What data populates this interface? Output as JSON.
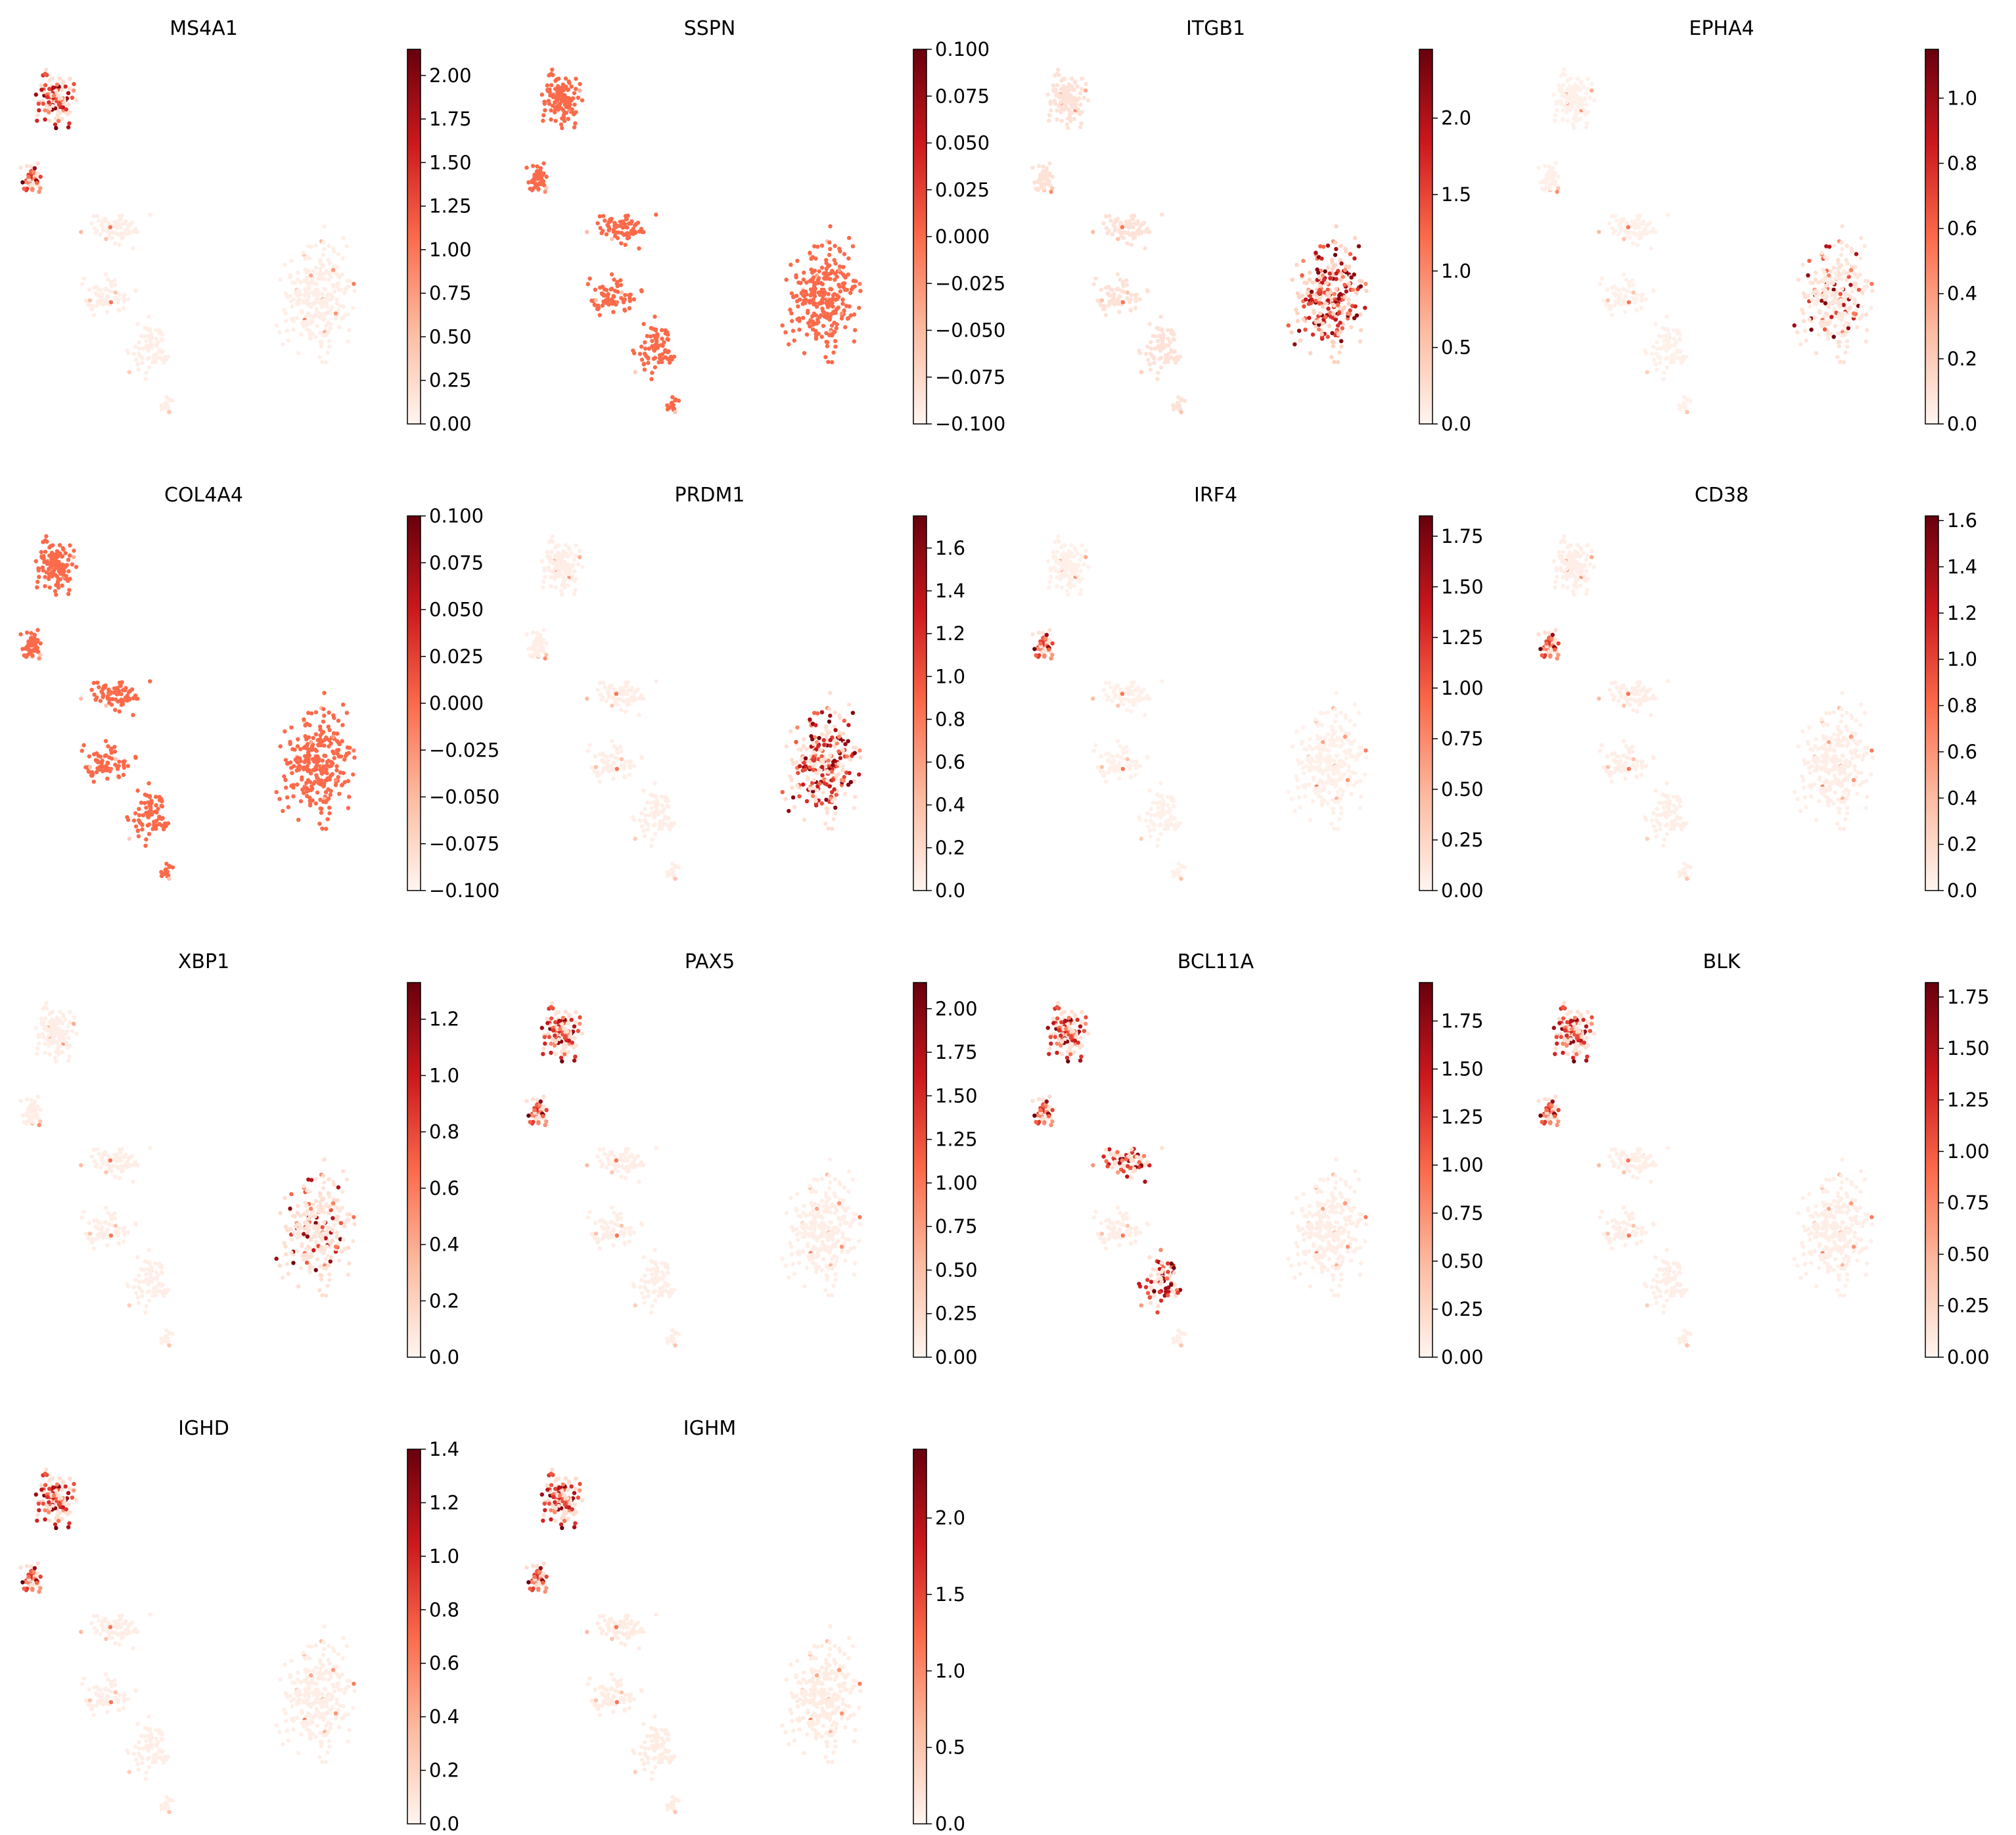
{
  "figure": {
    "grid_columns": 4,
    "colormap": [
      "#fff5f0",
      "#fcbba1",
      "#fb6a4a",
      "#cb181d",
      "#67000d"
    ]
  },
  "chart_data": [
    {
      "type": "scatter",
      "title": "MS4A1",
      "colorbar_ticks": [
        "0.00",
        "0.25",
        "0.50",
        "0.75",
        "1.00",
        "1.25",
        "1.50",
        "1.75",
        "2.00"
      ],
      "colorbar_range": [
        0,
        2.15
      ],
      "high_expression_region": "top-left cluster",
      "base_level": 0.03
    },
    {
      "type": "scatter",
      "title": "SSPN",
      "colorbar_ticks": [
        "−0.100",
        "−0.075",
        "−0.050",
        "−0.025",
        "0.000",
        "0.025",
        "0.050",
        "0.075",
        "0.100"
      ],
      "colorbar_range": [
        -0.1,
        0.1
      ],
      "high_expression_region": "none (constant 0)",
      "base_level": 0.5
    },
    {
      "type": "scatter",
      "title": "ITGB1",
      "colorbar_ticks": [
        "0.0",
        "0.5",
        "1.0",
        "1.5",
        "2.0"
      ],
      "colorbar_range": [
        0,
        2.45
      ],
      "high_expression_region": "right cluster",
      "base_level": 0.08
    },
    {
      "type": "scatter",
      "title": "EPHA4",
      "colorbar_ticks": [
        "0.0",
        "0.2",
        "0.4",
        "0.6",
        "0.8",
        "1.0"
      ],
      "colorbar_range": [
        0,
        1.15
      ],
      "high_expression_region": "right cluster (sparse)",
      "base_level": 0.02
    },
    {
      "type": "scatter",
      "title": "COL4A4",
      "colorbar_ticks": [
        "−0.100",
        "−0.075",
        "−0.050",
        "−0.025",
        "0.000",
        "0.025",
        "0.050",
        "0.075",
        "0.100"
      ],
      "colorbar_range": [
        -0.1,
        0.1
      ],
      "high_expression_region": "none (constant 0)",
      "base_level": 0.5
    },
    {
      "type": "scatter",
      "title": "PRDM1",
      "colorbar_ticks": [
        "0.0",
        "0.2",
        "0.4",
        "0.6",
        "0.8",
        "1.0",
        "1.2",
        "1.4",
        "1.6"
      ],
      "colorbar_range": [
        0,
        1.75
      ],
      "high_expression_region": "right cluster",
      "base_level": 0.03
    },
    {
      "type": "scatter",
      "title": "IRF4",
      "colorbar_ticks": [
        "0.00",
        "0.25",
        "0.50",
        "0.75",
        "1.00",
        "1.25",
        "1.50",
        "1.75"
      ],
      "colorbar_range": [
        0,
        1.85
      ],
      "high_expression_region": "left branch",
      "base_level": 0.02
    },
    {
      "type": "scatter",
      "title": "CD38",
      "colorbar_ticks": [
        "0.0",
        "0.2",
        "0.4",
        "0.6",
        "0.8",
        "1.0",
        "1.2",
        "1.4",
        "1.6"
      ],
      "colorbar_range": [
        0,
        1.62
      ],
      "high_expression_region": "left branch",
      "base_level": 0.03
    },
    {
      "type": "scatter",
      "title": "XBP1",
      "colorbar_ticks": [
        "0.0",
        "0.2",
        "0.4",
        "0.6",
        "0.8",
        "1.0",
        "1.2"
      ],
      "colorbar_range": [
        0,
        1.33
      ],
      "high_expression_region": "right cluster (sparse)",
      "base_level": 0.03
    },
    {
      "type": "scatter",
      "title": "PAX5",
      "colorbar_ticks": [
        "0.00",
        "0.25",
        "0.50",
        "0.75",
        "1.00",
        "1.25",
        "1.50",
        "1.75",
        "2.00"
      ],
      "colorbar_range": [
        0,
        2.15
      ],
      "high_expression_region": "top-left cluster and branch",
      "base_level": 0.03
    },
    {
      "type": "scatter",
      "title": "BCL11A",
      "colorbar_ticks": [
        "0.00",
        "0.25",
        "0.50",
        "0.75",
        "1.00",
        "1.25",
        "1.50",
        "1.75"
      ],
      "colorbar_range": [
        0,
        1.95
      ],
      "high_expression_region": "left cluster and stem",
      "base_level": 0.03
    },
    {
      "type": "scatter",
      "title": "BLK",
      "colorbar_ticks": [
        "0.00",
        "0.25",
        "0.50",
        "0.75",
        "1.00",
        "1.25",
        "1.50",
        "1.75"
      ],
      "colorbar_range": [
        0,
        1.82
      ],
      "high_expression_region": "top-left cluster",
      "base_level": 0.03
    },
    {
      "type": "scatter",
      "title": "IGHD",
      "colorbar_ticks": [
        "0.0",
        "0.2",
        "0.4",
        "0.6",
        "0.8",
        "1.0",
        "1.2",
        "1.4"
      ],
      "colorbar_range": [
        0,
        1.4
      ],
      "high_expression_region": "top-left cluster",
      "base_level": 0.03
    },
    {
      "type": "scatter",
      "title": "IGHM",
      "colorbar_ticks": [
        "0.0",
        "0.5",
        "1.0",
        "1.5",
        "2.0"
      ],
      "colorbar_range": [
        0,
        2.45
      ],
      "high_expression_region": "top-left cluster and branch",
      "base_level": 0.04
    }
  ]
}
